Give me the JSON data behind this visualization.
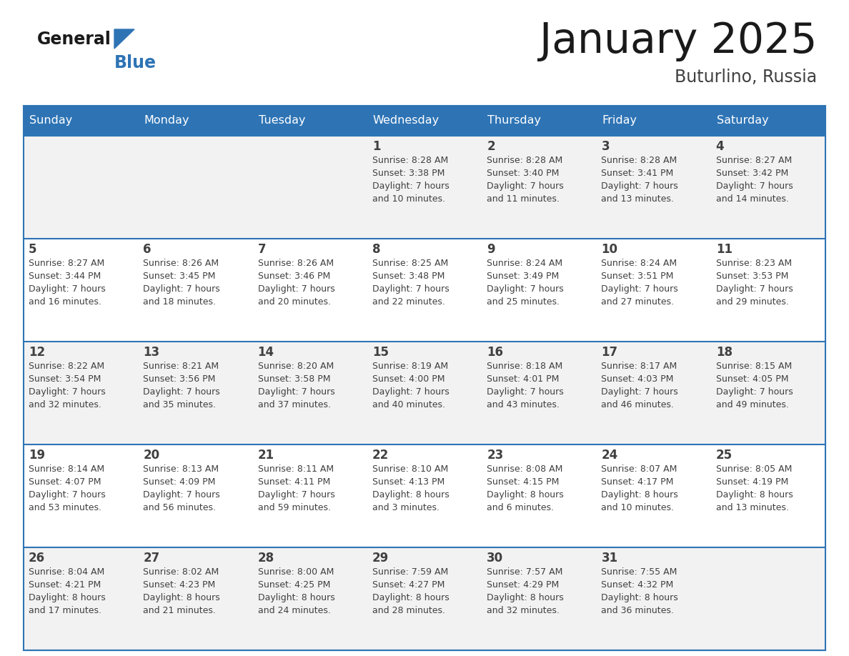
{
  "title": "January 2025",
  "subtitle": "Buturlino, Russia",
  "days_of_week": [
    "Sunday",
    "Monday",
    "Tuesday",
    "Wednesday",
    "Thursday",
    "Friday",
    "Saturday"
  ],
  "header_bg": "#2E74B5",
  "header_text": "#FFFFFF",
  "row_bg_odd": "#F2F2F2",
  "row_bg_even": "#FFFFFF",
  "cell_text": "#404040",
  "border_color": "#2E74B5",
  "title_color": "#1a1a1a",
  "subtitle_color": "#404040",
  "logo_general_color": "#1a1a1a",
  "logo_blue_color": "#2E74B5",
  "calendar_data": [
    [
      {
        "day": null,
        "sunrise": null,
        "sunset": null,
        "daylight": null
      },
      {
        "day": null,
        "sunrise": null,
        "sunset": null,
        "daylight": null
      },
      {
        "day": null,
        "sunrise": null,
        "sunset": null,
        "daylight": null
      },
      {
        "day": 1,
        "sunrise": "8:28 AM",
        "sunset": "3:38 PM",
        "daylight": "7 hours\nand 10 minutes."
      },
      {
        "day": 2,
        "sunrise": "8:28 AM",
        "sunset": "3:40 PM",
        "daylight": "7 hours\nand 11 minutes."
      },
      {
        "day": 3,
        "sunrise": "8:28 AM",
        "sunset": "3:41 PM",
        "daylight": "7 hours\nand 13 minutes."
      },
      {
        "day": 4,
        "sunrise": "8:27 AM",
        "sunset": "3:42 PM",
        "daylight": "7 hours\nand 14 minutes."
      }
    ],
    [
      {
        "day": 5,
        "sunrise": "8:27 AM",
        "sunset": "3:44 PM",
        "daylight": "7 hours\nand 16 minutes."
      },
      {
        "day": 6,
        "sunrise": "8:26 AM",
        "sunset": "3:45 PM",
        "daylight": "7 hours\nand 18 minutes."
      },
      {
        "day": 7,
        "sunrise": "8:26 AM",
        "sunset": "3:46 PM",
        "daylight": "7 hours\nand 20 minutes."
      },
      {
        "day": 8,
        "sunrise": "8:25 AM",
        "sunset": "3:48 PM",
        "daylight": "7 hours\nand 22 minutes."
      },
      {
        "day": 9,
        "sunrise": "8:24 AM",
        "sunset": "3:49 PM",
        "daylight": "7 hours\nand 25 minutes."
      },
      {
        "day": 10,
        "sunrise": "8:24 AM",
        "sunset": "3:51 PM",
        "daylight": "7 hours\nand 27 minutes."
      },
      {
        "day": 11,
        "sunrise": "8:23 AM",
        "sunset": "3:53 PM",
        "daylight": "7 hours\nand 29 minutes."
      }
    ],
    [
      {
        "day": 12,
        "sunrise": "8:22 AM",
        "sunset": "3:54 PM",
        "daylight": "7 hours\nand 32 minutes."
      },
      {
        "day": 13,
        "sunrise": "8:21 AM",
        "sunset": "3:56 PM",
        "daylight": "7 hours\nand 35 minutes."
      },
      {
        "day": 14,
        "sunrise": "8:20 AM",
        "sunset": "3:58 PM",
        "daylight": "7 hours\nand 37 minutes."
      },
      {
        "day": 15,
        "sunrise": "8:19 AM",
        "sunset": "4:00 PM",
        "daylight": "7 hours\nand 40 minutes."
      },
      {
        "day": 16,
        "sunrise": "8:18 AM",
        "sunset": "4:01 PM",
        "daylight": "7 hours\nand 43 minutes."
      },
      {
        "day": 17,
        "sunrise": "8:17 AM",
        "sunset": "4:03 PM",
        "daylight": "7 hours\nand 46 minutes."
      },
      {
        "day": 18,
        "sunrise": "8:15 AM",
        "sunset": "4:05 PM",
        "daylight": "7 hours\nand 49 minutes."
      }
    ],
    [
      {
        "day": 19,
        "sunrise": "8:14 AM",
        "sunset": "4:07 PM",
        "daylight": "7 hours\nand 53 minutes."
      },
      {
        "day": 20,
        "sunrise": "8:13 AM",
        "sunset": "4:09 PM",
        "daylight": "7 hours\nand 56 minutes."
      },
      {
        "day": 21,
        "sunrise": "8:11 AM",
        "sunset": "4:11 PM",
        "daylight": "7 hours\nand 59 minutes."
      },
      {
        "day": 22,
        "sunrise": "8:10 AM",
        "sunset": "4:13 PM",
        "daylight": "8 hours\nand 3 minutes."
      },
      {
        "day": 23,
        "sunrise": "8:08 AM",
        "sunset": "4:15 PM",
        "daylight": "8 hours\nand 6 minutes."
      },
      {
        "day": 24,
        "sunrise": "8:07 AM",
        "sunset": "4:17 PM",
        "daylight": "8 hours\nand 10 minutes."
      },
      {
        "day": 25,
        "sunrise": "8:05 AM",
        "sunset": "4:19 PM",
        "daylight": "8 hours\nand 13 minutes."
      }
    ],
    [
      {
        "day": 26,
        "sunrise": "8:04 AM",
        "sunset": "4:21 PM",
        "daylight": "8 hours\nand 17 minutes."
      },
      {
        "day": 27,
        "sunrise": "8:02 AM",
        "sunset": "4:23 PM",
        "daylight": "8 hours\nand 21 minutes."
      },
      {
        "day": 28,
        "sunrise": "8:00 AM",
        "sunset": "4:25 PM",
        "daylight": "8 hours\nand 24 minutes."
      },
      {
        "day": 29,
        "sunrise": "7:59 AM",
        "sunset": "4:27 PM",
        "daylight": "8 hours\nand 28 minutes."
      },
      {
        "day": 30,
        "sunrise": "7:57 AM",
        "sunset": "4:29 PM",
        "daylight": "8 hours\nand 32 minutes."
      },
      {
        "day": 31,
        "sunrise": "7:55 AM",
        "sunset": "4:32 PM",
        "daylight": "8 hours\nand 36 minutes."
      },
      {
        "day": null,
        "sunrise": null,
        "sunset": null,
        "daylight": null
      }
    ]
  ]
}
